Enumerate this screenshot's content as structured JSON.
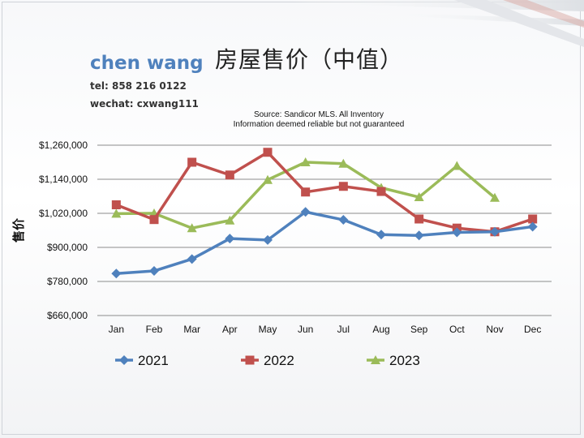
{
  "slide": {
    "title": "房屋售价（中值）",
    "author": "chen wang",
    "tel": "tel: 858 216 0122",
    "wechat": "wechat: cxwang111"
  },
  "chart_data": {
    "type": "line",
    "source_line1": "Source: Sandicor MLS. All Inventory",
    "source_line2": "Information deemed reliable but not guaranteed",
    "ylabel": "售价",
    "xlabel": "",
    "categories": [
      "Jan",
      "Feb",
      "Mar",
      "Apr",
      "May",
      "Jun",
      "Jul",
      "Aug",
      "Sep",
      "Oct",
      "Nov",
      "Dec"
    ],
    "ylim": [
      660000,
      1260000
    ],
    "yticks": [
      660000,
      780000,
      900000,
      1020000,
      1140000,
      1260000
    ],
    "ytick_labels": [
      "$660,000",
      "$780,000",
      "$900,000",
      "$1,020,000",
      "$1,140,000",
      "$1,260,000"
    ],
    "grid": true,
    "legend_position": "bottom",
    "series": [
      {
        "name": "2021",
        "color": "#4f81bd",
        "marker": "diamond",
        "values": [
          808000,
          817000,
          859000,
          931000,
          926000,
          1025000,
          997000,
          945000,
          942000,
          953000,
          955000,
          973000
        ]
      },
      {
        "name": "2022",
        "color": "#c0504d",
        "marker": "square",
        "values": [
          1050000,
          998000,
          1200000,
          1155000,
          1235000,
          1095000,
          1115000,
          1097000,
          1000000,
          968000,
          955000,
          1000000
        ]
      },
      {
        "name": "2023",
        "color": "#9bbb59",
        "marker": "triangle",
        "values": [
          1019000,
          1020000,
          968000,
          995000,
          1138000,
          1200000,
          1195000,
          1110000,
          1077000,
          1187000,
          1075000,
          null
        ]
      }
    ]
  }
}
